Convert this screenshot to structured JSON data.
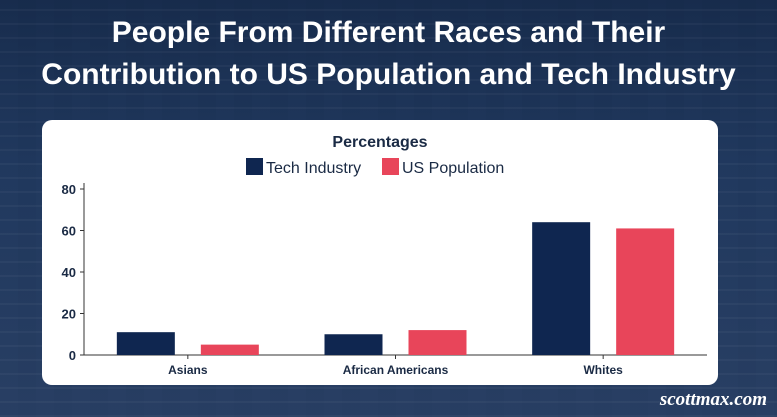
{
  "page": {
    "title_line1": "People From Different Races and Their",
    "title_line2": "Contribution to US Population and Tech Industry",
    "watermark": "scottmax.com"
  },
  "colors": {
    "tech": "#0f2650",
    "population": "#e8455a",
    "axis": "#333333",
    "text": "#1a2a44"
  },
  "chart_data": {
    "type": "bar",
    "title": "Percentages",
    "categories": [
      "Asians",
      "African Americans",
      "Whites"
    ],
    "series": [
      {
        "name": "Tech Industry",
        "values": [
          11,
          10,
          64
        ]
      },
      {
        "name": "US Population",
        "values": [
          5,
          12,
          61
        ]
      }
    ],
    "xlabel": "",
    "ylabel": "",
    "ylim": [
      0,
      80
    ],
    "yticks": [
      0,
      20,
      40,
      60,
      80
    ],
    "legend": "top-center",
    "grid": false
  }
}
